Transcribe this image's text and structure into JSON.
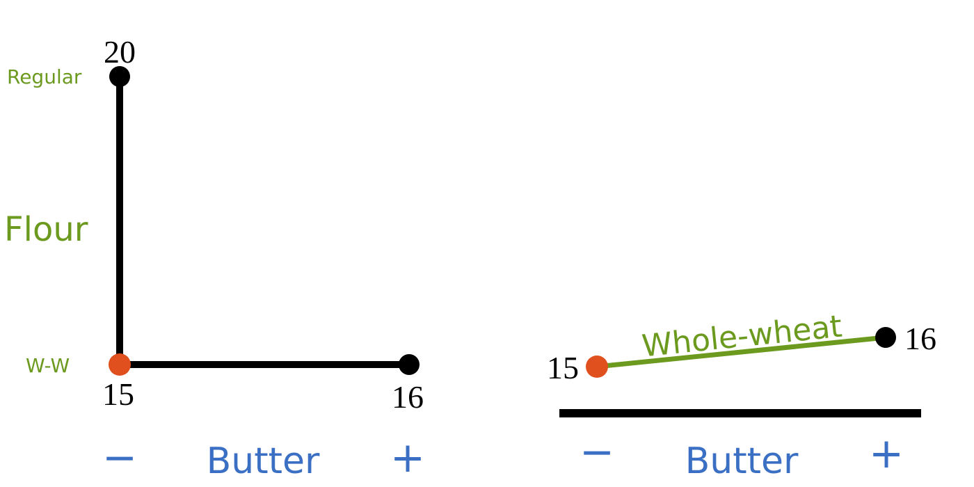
{
  "colors": {
    "factor_flour": "#6b9a1f",
    "factor_butter": "#3a6fc4",
    "low_low_point": "#e0501f",
    "point": "#000000",
    "line": "#000000",
    "interaction_line": "#6b9a1f"
  },
  "left_panel": {
    "y_factor_label": "Flour",
    "y_high_label": "Regular",
    "y_low_label": "W-W",
    "x_factor_label": "Butter",
    "x_minus": "−",
    "x_plus": "+",
    "value_origin": "15",
    "value_top": "20",
    "value_right": "16"
  },
  "right_panel": {
    "line_label": "Whole-wheat",
    "value_left": "15",
    "value_right": "16",
    "x_factor_label": "Butter",
    "x_minus": "−",
    "x_plus": "+"
  }
}
